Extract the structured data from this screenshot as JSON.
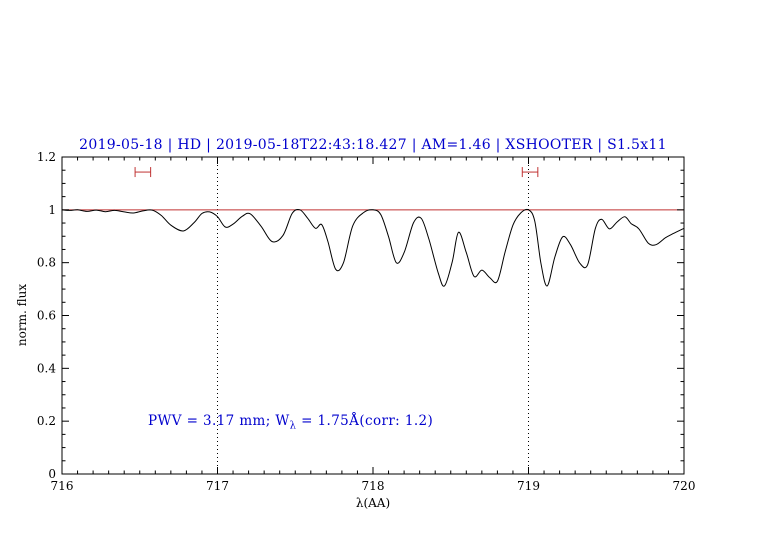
{
  "title": "2019-05-18 | HD | 2019-05-18T22:43:18.427 | AM=1.46 | XSHOOTER | S1.5x11",
  "ylabel": "norm. flux",
  "xlabel": "λ(AA)",
  "annotation": {
    "part1": "PWV = 3.17 mm; W",
    "sub": "λ",
    "part2": " = 1.75Å(corr: 1.2)"
  },
  "colors": {
    "accent_blue": "#0000cd",
    "continuum_red": "#c03333",
    "spectrum_black": "#000000"
  },
  "chart_data": {
    "type": "line",
    "title": "2019-05-18 | HD | 2019-05-18T22:43:18.427 | AM=1.46 | XSHOOTER | S1.5x11",
    "xlabel": "λ(AA)",
    "ylabel": "norm. flux",
    "xlim": [
      716,
      720
    ],
    "ylim": [
      0,
      1.2
    ],
    "grid": false,
    "x_ticks": {
      "values": [
        716,
        717,
        718,
        719,
        720
      ],
      "labels": [
        "716",
        "717",
        "718",
        "719",
        "720"
      ]
    },
    "y_ticks": {
      "values": [
        0,
        0.2,
        0.4,
        0.6,
        0.8,
        1,
        1.2
      ],
      "labels": [
        "0",
        "0.2",
        "0.4",
        "0.6",
        "0.8",
        "1",
        "1.2"
      ]
    },
    "x_minor_step": 0.1,
    "y_minor_step": 0.05,
    "vlines_dotted": [
      717,
      719
    ],
    "continuum_line_y": 1.0,
    "band_markers": [
      {
        "x_start": 716.47,
        "x_end": 716.57,
        "y": 1.143
      },
      {
        "x_start": 718.96,
        "x_end": 719.06,
        "y": 1.143
      }
    ],
    "series": [
      {
        "name": "normalized telluric spectrum",
        "points": [
          [
            716.0,
            1.0
          ],
          [
            716.05,
            0.998
          ],
          [
            716.1,
            1.0
          ],
          [
            716.16,
            0.994
          ],
          [
            716.22,
            0.999
          ],
          [
            716.28,
            0.993
          ],
          [
            716.34,
            0.998
          ],
          [
            716.4,
            0.992
          ],
          [
            716.46,
            0.988
          ],
          [
            716.52,
            0.996
          ],
          [
            716.58,
            0.999
          ],
          [
            716.64,
            0.978
          ],
          [
            716.7,
            0.942
          ],
          [
            716.78,
            0.92
          ],
          [
            716.85,
            0.952
          ],
          [
            716.9,
            0.986
          ],
          [
            716.95,
            0.992
          ],
          [
            717.0,
            0.974
          ],
          [
            717.05,
            0.935
          ],
          [
            717.1,
            0.946
          ],
          [
            717.16,
            0.976
          ],
          [
            717.21,
            0.985
          ],
          [
            717.28,
            0.938
          ],
          [
            717.35,
            0.88
          ],
          [
            717.42,
            0.902
          ],
          [
            717.48,
            0.986
          ],
          [
            717.53,
            1.0
          ],
          [
            717.58,
            0.968
          ],
          [
            717.63,
            0.93
          ],
          [
            717.67,
            0.944
          ],
          [
            717.71,
            0.88
          ],
          [
            717.76,
            0.775
          ],
          [
            717.81,
            0.8
          ],
          [
            717.87,
            0.94
          ],
          [
            717.94,
            0.99
          ],
          [
            718.0,
            1.0
          ],
          [
            718.05,
            0.982
          ],
          [
            718.1,
            0.898
          ],
          [
            718.15,
            0.8
          ],
          [
            718.2,
            0.838
          ],
          [
            718.26,
            0.95
          ],
          [
            718.31,
            0.968
          ],
          [
            718.36,
            0.888
          ],
          [
            718.42,
            0.76
          ],
          [
            718.46,
            0.712
          ],
          [
            718.51,
            0.804
          ],
          [
            718.55,
            0.915
          ],
          [
            718.6,
            0.838
          ],
          [
            718.65,
            0.748
          ],
          [
            718.7,
            0.772
          ],
          [
            718.75,
            0.744
          ],
          [
            718.8,
            0.73
          ],
          [
            718.85,
            0.842
          ],
          [
            718.9,
            0.942
          ],
          [
            718.95,
            0.988
          ],
          [
            719.0,
            1.0
          ],
          [
            719.04,
            0.958
          ],
          [
            719.08,
            0.798
          ],
          [
            719.12,
            0.712
          ],
          [
            719.17,
            0.822
          ],
          [
            719.22,
            0.898
          ],
          [
            719.27,
            0.868
          ],
          [
            719.33,
            0.798
          ],
          [
            719.38,
            0.792
          ],
          [
            719.43,
            0.93
          ],
          [
            719.47,
            0.964
          ],
          [
            719.52,
            0.928
          ],
          [
            719.57,
            0.954
          ],
          [
            719.62,
            0.974
          ],
          [
            719.66,
            0.948
          ],
          [
            719.71,
            0.928
          ],
          [
            719.77,
            0.874
          ],
          [
            719.82,
            0.868
          ],
          [
            719.88,
            0.894
          ],
          [
            719.93,
            0.91
          ],
          [
            720.0,
            0.93
          ]
        ]
      }
    ],
    "annotation_text": "PWV = 3.17 mm; Wλ = 1.75Å(corr: 1.2)",
    "annotation_position": {
      "x": 716.55,
      "y": 0.2
    }
  }
}
